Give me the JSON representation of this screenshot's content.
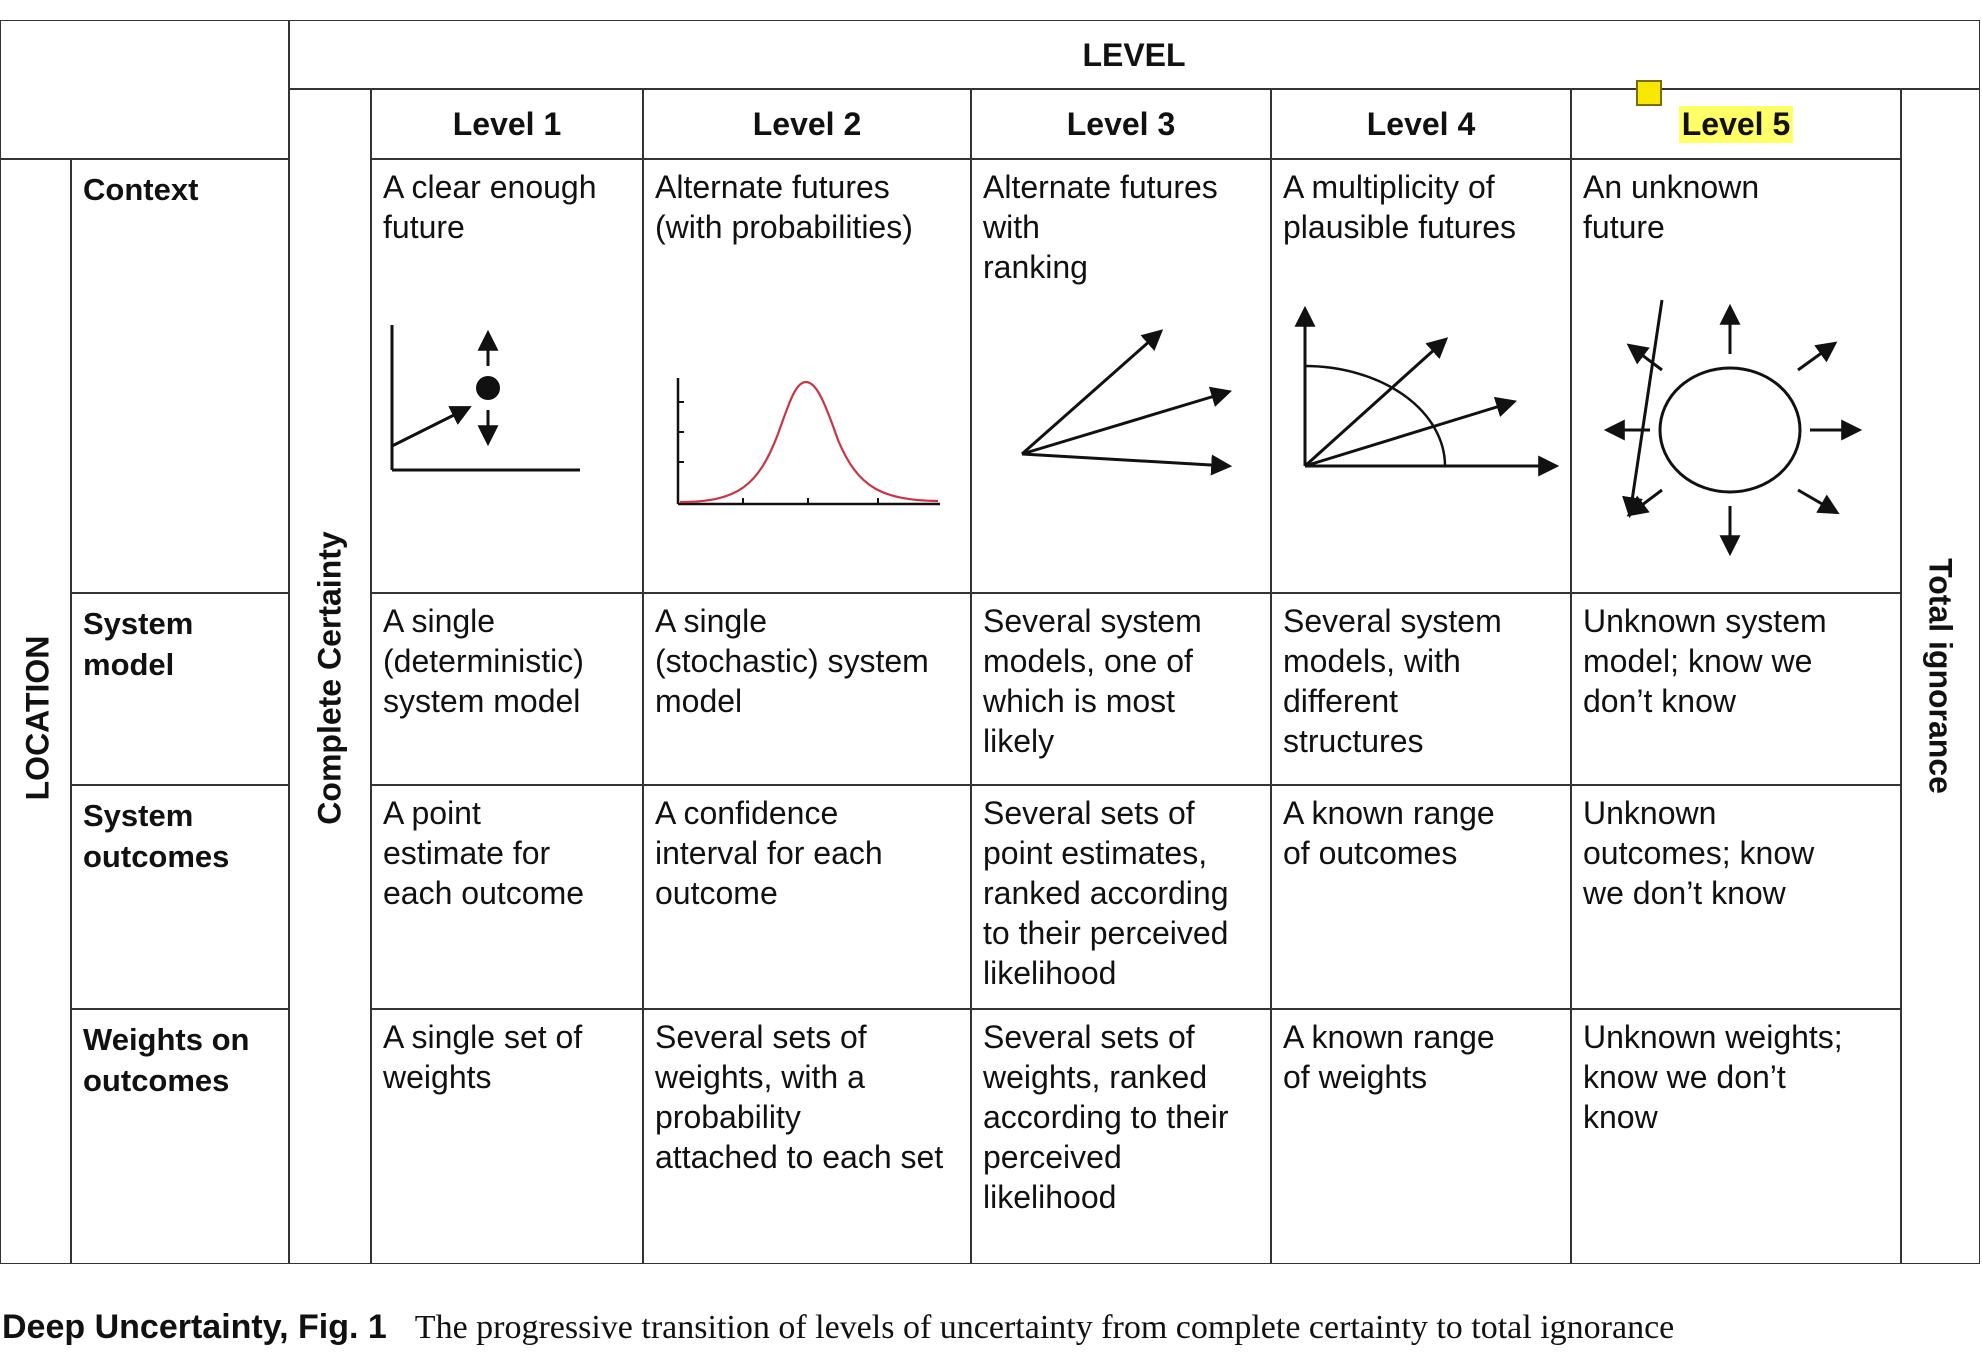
{
  "header": {
    "level": "LEVEL",
    "levels": [
      "Level 1",
      "Level 2",
      "Level 3",
      "Level 4",
      "Level 5"
    ]
  },
  "side": {
    "location": "LOCATION",
    "complete_certainty": "Complete Certainty",
    "total_ignorance": "Total ignorance"
  },
  "rows": [
    {
      "label_line1": "Context",
      "label_line2": "",
      "cells": [
        "A clear enough\nfuture",
        "Alternate futures\n(with probabilities)",
        "Alternate futures\nwith\nranking",
        "A multiplicity of\nplausible futures",
        "An unknown\nfuture"
      ]
    },
    {
      "label_line1": "System",
      "label_line2": "model",
      "cells": [
        "A single\n(deterministic)\nsystem model",
        "A single\n(stochastic) system\nmodel",
        "Several system\nmodels, one of\nwhich is most\nlikely",
        "Several system\nmodels, with\ndifferent\nstructures",
        "Unknown system\nmodel; know we\ndon’t know"
      ]
    },
    {
      "label_line1": "System",
      "label_line2": "outcomes",
      "cells": [
        "A point\nestimate for\neach outcome",
        "A confidence\ninterval for each\noutcome",
        "Several sets of\npoint estimates,\nranked according\nto their perceived\nlikelihood",
        "A known range\nof outcomes",
        "Unknown\noutcomes; know\nwe don’t know"
      ]
    },
    {
      "label_line1": "Weights on",
      "label_line2": "outcomes",
      "cells": [
        "A single set of\nweights",
        "Several sets of\nweights, with a\nprobability\nattached to each set",
        "Several sets of\nweights, ranked\naccording to their\nperceived\nlikelihood",
        "A known range\nof weights",
        "Unknown weights;\nknow we don’t\nknow"
      ]
    }
  ],
  "caption": {
    "label": "Deep Uncertainty, Fig. 1",
    "text": "The progressive transition of levels of uncertainty from complete certainty to total ignorance"
  },
  "colors": {
    "line": "#333333",
    "curve": "#cc3344",
    "highlight": "#ffff66",
    "note": "#f6e800"
  }
}
